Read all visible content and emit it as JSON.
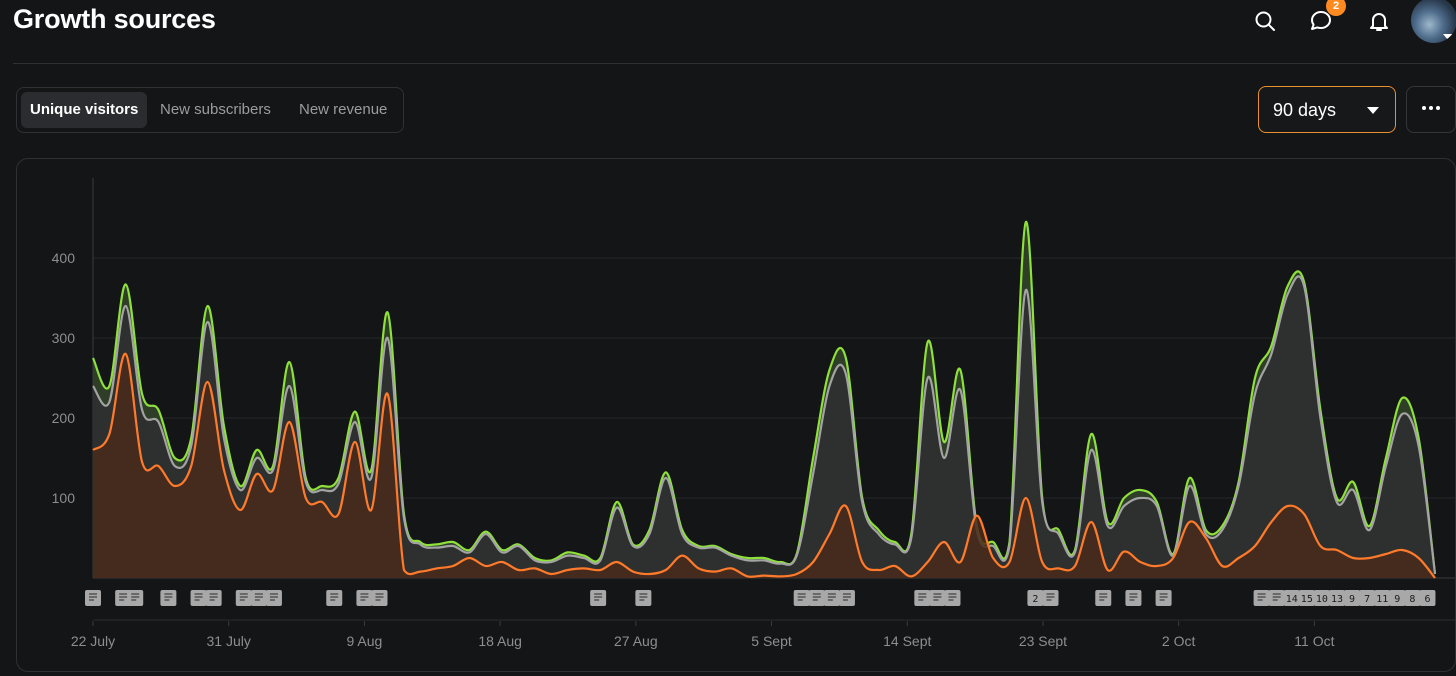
{
  "header": {
    "title": "Growth sources",
    "notification_count": "2",
    "icons": [
      "search-icon",
      "chat-icon",
      "bell-icon",
      "avatar"
    ]
  },
  "tabs": [
    {
      "label": "Unique visitors",
      "active": true
    },
    {
      "label": "New subscribers",
      "active": false
    },
    {
      "label": "New revenue",
      "active": false
    }
  ],
  "range": {
    "label": "90 days"
  },
  "colors": {
    "accent": "#e8902f",
    "total": "#8ee03a",
    "direct": "#a3a3a3",
    "orange": "#ff7a2a"
  },
  "chart_data": {
    "type": "area",
    "x_tick_labels": [
      "22 July",
      "31 July",
      "9 Aug",
      "18 Aug",
      "27 Aug",
      "5 Sept",
      "14 Sept",
      "23 Sept",
      "2 Oct",
      "11 Oct"
    ],
    "y_ticks": [
      100,
      200,
      300,
      400
    ],
    "ylim": [
      0,
      500
    ],
    "x_range_days": [
      0,
      89
    ],
    "grid": true,
    "series": [
      {
        "color": "#8ee03a",
        "points": [
          [
            0,
            275
          ],
          [
            1,
            240
          ],
          [
            2,
            367
          ],
          [
            3,
            230
          ],
          [
            4,
            210
          ],
          [
            5,
            150
          ],
          [
            6,
            175
          ],
          [
            7,
            340
          ],
          [
            8,
            190
          ],
          [
            9,
            115
          ],
          [
            10,
            160
          ],
          [
            11,
            140
          ],
          [
            12,
            270
          ],
          [
            13,
            125
          ],
          [
            14,
            115
          ],
          [
            15,
            125
          ],
          [
            16,
            208
          ],
          [
            17,
            135
          ],
          [
            18,
            332
          ],
          [
            19,
            80
          ],
          [
            20,
            45
          ],
          [
            21,
            42
          ],
          [
            22,
            45
          ],
          [
            23,
            35
          ],
          [
            24,
            58
          ],
          [
            25,
            35
          ],
          [
            26,
            42
          ],
          [
            27,
            25
          ],
          [
            28,
            22
          ],
          [
            29,
            32
          ],
          [
            30,
            28
          ],
          [
            31,
            25
          ],
          [
            32,
            95
          ],
          [
            33,
            42
          ],
          [
            34,
            60
          ],
          [
            35,
            132
          ],
          [
            36,
            60
          ],
          [
            37,
            40
          ],
          [
            38,
            40
          ],
          [
            39,
            30
          ],
          [
            40,
            25
          ],
          [
            41,
            25
          ],
          [
            42,
            20
          ],
          [
            43,
            30
          ],
          [
            44,
            150
          ],
          [
            45,
            260
          ],
          [
            46,
            275
          ],
          [
            47,
            100
          ],
          [
            48,
            60
          ],
          [
            49,
            45
          ],
          [
            50,
            55
          ],
          [
            51,
            295
          ],
          [
            52,
            170
          ],
          [
            53,
            260
          ],
          [
            54,
            65
          ],
          [
            55,
            45
          ],
          [
            56,
            45
          ],
          [
            57,
            445
          ],
          [
            58,
            100
          ],
          [
            59,
            60
          ],
          [
            60,
            35
          ],
          [
            61,
            180
          ],
          [
            62,
            70
          ],
          [
            63,
            100
          ],
          [
            64,
            110
          ],
          [
            65,
            95
          ],
          [
            66,
            30
          ],
          [
            67,
            125
          ],
          [
            68,
            60
          ],
          [
            69,
            65
          ],
          [
            70,
            120
          ],
          [
            71,
            250
          ],
          [
            72,
            290
          ],
          [
            73,
            365
          ],
          [
            74,
            370
          ],
          [
            75,
            210
          ],
          [
            76,
            100
          ],
          [
            77,
            120
          ],
          [
            78,
            65
          ],
          [
            79,
            150
          ],
          [
            80,
            225
          ],
          [
            81,
            175
          ],
          [
            82,
            5
          ]
        ]
      },
      {
        "color": "#a3a3a3",
        "points": [
          [
            0,
            240
          ],
          [
            1,
            220
          ],
          [
            2,
            340
          ],
          [
            3,
            210
          ],
          [
            4,
            195
          ],
          [
            5,
            140
          ],
          [
            6,
            165
          ],
          [
            7,
            320
          ],
          [
            8,
            175
          ],
          [
            9,
            110
          ],
          [
            10,
            150
          ],
          [
            11,
            135
          ],
          [
            12,
            240
          ],
          [
            13,
            120
          ],
          [
            14,
            110
          ],
          [
            15,
            118
          ],
          [
            16,
            195
          ],
          [
            17,
            125
          ],
          [
            18,
            300
          ],
          [
            19,
            75
          ],
          [
            20,
            42
          ],
          [
            21,
            38
          ],
          [
            22,
            40
          ],
          [
            23,
            32
          ],
          [
            24,
            55
          ],
          [
            25,
            32
          ],
          [
            26,
            40
          ],
          [
            27,
            22
          ],
          [
            28,
            20
          ],
          [
            29,
            28
          ],
          [
            30,
            25
          ],
          [
            31,
            22
          ],
          [
            32,
            88
          ],
          [
            33,
            40
          ],
          [
            34,
            55
          ],
          [
            35,
            125
          ],
          [
            36,
            55
          ],
          [
            37,
            38
          ],
          [
            38,
            38
          ],
          [
            39,
            28
          ],
          [
            40,
            22
          ],
          [
            41,
            22
          ],
          [
            42,
            18
          ],
          [
            43,
            28
          ],
          [
            44,
            130
          ],
          [
            45,
            240
          ],
          [
            46,
            255
          ],
          [
            47,
            95
          ],
          [
            48,
            55
          ],
          [
            49,
            42
          ],
          [
            50,
            50
          ],
          [
            51,
            250
          ],
          [
            52,
            150
          ],
          [
            53,
            235
          ],
          [
            54,
            60
          ],
          [
            55,
            40
          ],
          [
            56,
            40
          ],
          [
            57,
            360
          ],
          [
            58,
            95
          ],
          [
            59,
            55
          ],
          [
            60,
            32
          ],
          [
            61,
            160
          ],
          [
            62,
            65
          ],
          [
            63,
            90
          ],
          [
            64,
            100
          ],
          [
            65,
            90
          ],
          [
            66,
            28
          ],
          [
            67,
            115
          ],
          [
            68,
            55
          ],
          [
            69,
            60
          ],
          [
            70,
            115
          ],
          [
            71,
            230
          ],
          [
            72,
            280
          ],
          [
            73,
            355
          ],
          [
            74,
            365
          ],
          [
            75,
            200
          ],
          [
            76,
            95
          ],
          [
            77,
            110
          ],
          [
            78,
            60
          ],
          [
            79,
            140
          ],
          [
            80,
            205
          ],
          [
            81,
            165
          ],
          [
            82,
            5
          ]
        ]
      },
      {
        "color": "#ff7a2a",
        "points": [
          [
            0,
            160
          ],
          [
            1,
            180
          ],
          [
            2,
            280
          ],
          [
            3,
            145
          ],
          [
            4,
            140
          ],
          [
            5,
            115
          ],
          [
            6,
            140
          ],
          [
            7,
            245
          ],
          [
            8,
            135
          ],
          [
            9,
            85
          ],
          [
            10,
            130
          ],
          [
            11,
            110
          ],
          [
            12,
            195
          ],
          [
            13,
            100
          ],
          [
            14,
            95
          ],
          [
            15,
            80
          ],
          [
            16,
            170
          ],
          [
            17,
            85
          ],
          [
            18,
            230
          ],
          [
            19,
            10
          ],
          [
            20,
            8
          ],
          [
            21,
            12
          ],
          [
            22,
            15
          ],
          [
            23,
            25
          ],
          [
            24,
            15
          ],
          [
            25,
            20
          ],
          [
            26,
            10
          ],
          [
            27,
            12
          ],
          [
            28,
            5
          ],
          [
            29,
            10
          ],
          [
            30,
            12
          ],
          [
            31,
            10
          ],
          [
            32,
            20
          ],
          [
            33,
            8
          ],
          [
            34,
            5
          ],
          [
            35,
            10
          ],
          [
            36,
            28
          ],
          [
            37,
            12
          ],
          [
            38,
            8
          ],
          [
            39,
            12
          ],
          [
            40,
            2
          ],
          [
            41,
            3
          ],
          [
            42,
            2
          ],
          [
            43,
            5
          ],
          [
            44,
            20
          ],
          [
            45,
            55
          ],
          [
            46,
            90
          ],
          [
            47,
            20
          ],
          [
            48,
            10
          ],
          [
            49,
            15
          ],
          [
            50,
            2
          ],
          [
            51,
            20
          ],
          [
            52,
            45
          ],
          [
            53,
            20
          ],
          [
            54,
            78
          ],
          [
            55,
            25
          ],
          [
            56,
            20
          ],
          [
            57,
            100
          ],
          [
            58,
            20
          ],
          [
            59,
            12
          ],
          [
            60,
            15
          ],
          [
            61,
            70
          ],
          [
            62,
            10
          ],
          [
            63,
            33
          ],
          [
            64,
            20
          ],
          [
            65,
            15
          ],
          [
            66,
            25
          ],
          [
            67,
            70
          ],
          [
            68,
            50
          ],
          [
            69,
            15
          ],
          [
            70,
            25
          ],
          [
            71,
            40
          ],
          [
            72,
            70
          ],
          [
            73,
            90
          ],
          [
            74,
            80
          ],
          [
            75,
            40
          ],
          [
            76,
            35
          ],
          [
            77,
            25
          ],
          [
            78,
            25
          ],
          [
            79,
            30
          ],
          [
            80,
            35
          ],
          [
            81,
            25
          ],
          [
            82,
            0
          ]
        ]
      }
    ],
    "post_markers": [
      {
        "day": 0,
        "label": ""
      },
      {
        "day": 2,
        "label": ""
      },
      {
        "day": 2.8,
        "label": ""
      },
      {
        "day": 5,
        "label": ""
      },
      {
        "day": 7,
        "label": ""
      },
      {
        "day": 8,
        "label": ""
      },
      {
        "day": 10,
        "label": ""
      },
      {
        "day": 11,
        "label": ""
      },
      {
        "day": 12,
        "label": ""
      },
      {
        "day": 16,
        "label": ""
      },
      {
        "day": 18,
        "label": ""
      },
      {
        "day": 19,
        "label": ""
      },
      {
        "day": 33.5,
        "label": ""
      },
      {
        "day": 36.5,
        "label": ""
      },
      {
        "day": 47,
        "label": ""
      },
      {
        "day": 48,
        "label": ""
      },
      {
        "day": 49,
        "label": ""
      },
      {
        "day": 50,
        "label": ""
      },
      {
        "day": 55,
        "label": ""
      },
      {
        "day": 56,
        "label": ""
      },
      {
        "day": 57,
        "label": ""
      },
      {
        "day": 62.5,
        "label": "2"
      },
      {
        "day": 63.5,
        "label": ""
      },
      {
        "day": 67,
        "label": ""
      },
      {
        "day": 69,
        "label": ""
      },
      {
        "day": 71,
        "label": ""
      },
      {
        "day": 77.5,
        "label": ""
      },
      {
        "day": 78.5,
        "label": ""
      },
      {
        "day": 79.5,
        "label": "14"
      },
      {
        "day": 80.5,
        "label": "15"
      },
      {
        "day": 81.5,
        "label": "10"
      },
      {
        "day": 82.5,
        "label": "13"
      },
      {
        "day": 83.5,
        "label": "9"
      },
      {
        "day": 84.5,
        "label": "7"
      },
      {
        "day": 85.5,
        "label": "11"
      },
      {
        "day": 86.5,
        "label": "9"
      },
      {
        "day": 87.5,
        "label": "8"
      },
      {
        "day": 88.5,
        "label": "6"
      }
    ]
  }
}
